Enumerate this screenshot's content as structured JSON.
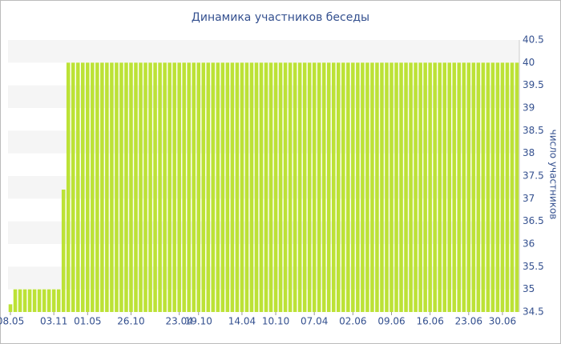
{
  "chart_data": {
    "type": "bar",
    "title": "Динамика участников беседы",
    "y_label": "число участников",
    "categories": [
      "08.05",
      null,
      null,
      null,
      null,
      null,
      null,
      null,
      null,
      "03.11",
      null,
      null,
      null,
      null,
      null,
      null,
      "01.05",
      null,
      null,
      null,
      null,
      null,
      null,
      null,
      null,
      "26.10",
      null,
      null,
      null,
      null,
      null,
      null,
      null,
      null,
      null,
      "23.04",
      null,
      null,
      null,
      "19.10",
      null,
      null,
      null,
      null,
      null,
      null,
      null,
      null,
      "14.04",
      null,
      null,
      null,
      null,
      null,
      null,
      "10.10",
      null,
      null,
      null,
      null,
      null,
      null,
      null,
      "07.04",
      null,
      null,
      null,
      null,
      null,
      null,
      null,
      "02.06",
      null,
      null,
      null,
      null,
      null,
      null,
      null,
      "09.06",
      null,
      null,
      null,
      null,
      null,
      null,
      null,
      "16.06",
      null,
      null,
      null,
      null,
      null,
      null,
      null,
      "23.06",
      null,
      null,
      null,
      null,
      null,
      null,
      "30.06",
      null,
      null,
      null
    ],
    "values": [
      34.67,
      35,
      35,
      35,
      35,
      35,
      35,
      35,
      35,
      35,
      35,
      37.2,
      40,
      40,
      40,
      40,
      40,
      40,
      40,
      40,
      40,
      40,
      40,
      40,
      40,
      40,
      40,
      40,
      40,
      40,
      40,
      40,
      40,
      40,
      40,
      40,
      40,
      40,
      40,
      40,
      40,
      40,
      40,
      40,
      40,
      40,
      40,
      40,
      40,
      40,
      40,
      40,
      40,
      40,
      40,
      40,
      40,
      40,
      40,
      40,
      40,
      40,
      40,
      40,
      40,
      40,
      40,
      40,
      40,
      40,
      40,
      40,
      40,
      40,
      40,
      40,
      40,
      40,
      40,
      40,
      40,
      40,
      40,
      40,
      40,
      40,
      40,
      40,
      40,
      40,
      40,
      40,
      40,
      40,
      40,
      40,
      40,
      40,
      40,
      40,
      40,
      40,
      40,
      40,
      40,
      40
    ],
    "color": "#bce236",
    "ylim": [
      34.5,
      40.5
    ],
    "yticks": [
      34.5,
      35,
      35.5,
      36,
      36.5,
      37,
      37.5,
      38,
      38.5,
      39,
      39.5,
      40,
      40.5
    ],
    "grid": true
  }
}
